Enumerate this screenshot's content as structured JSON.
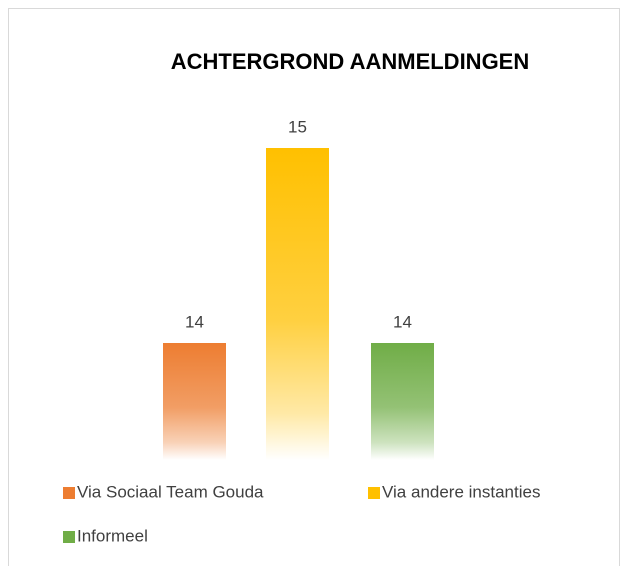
{
  "chart_data": {
    "type": "bar",
    "title": "ACHTERGROND AANMELDINGEN",
    "categories": [
      null
    ],
    "series": [
      {
        "name": "Via Sociaal Team Gouda",
        "color": "#ed7d31",
        "values": [
          14
        ]
      },
      {
        "name": "Via andere instanties",
        "color": "#ffc000",
        "values": [
          15
        ]
      },
      {
        "name": "Informeel",
        "color": "#70ad47",
        "values": [
          14
        ]
      }
    ],
    "ylim": [
      13.4,
      15.2
    ],
    "legend": "bottom"
  }
}
